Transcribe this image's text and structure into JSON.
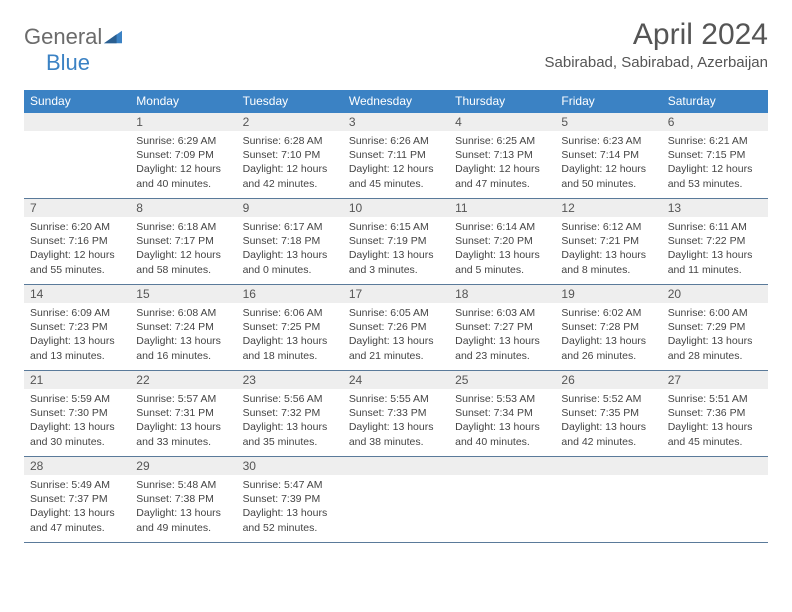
{
  "brand": {
    "part1": "General",
    "part2": "Blue"
  },
  "title": "April 2024",
  "location": "Sabirabad, Sabirabad, Azerbaijan",
  "colors": {
    "header_bg": "#3b82c4",
    "header_text": "#ffffff",
    "daynum_bg": "#eeeeee",
    "daynum_text": "#555555",
    "body_text": "#444444",
    "rule": "#5a7a9a",
    "logo_gray": "#6b6b6b",
    "logo_blue": "#3b82c4"
  },
  "weekdays": [
    "Sunday",
    "Monday",
    "Tuesday",
    "Wednesday",
    "Thursday",
    "Friday",
    "Saturday"
  ],
  "weeks": [
    [
      null,
      {
        "n": "1",
        "sr": "6:29 AM",
        "ss": "7:09 PM",
        "dl": "12 hours and 40 minutes."
      },
      {
        "n": "2",
        "sr": "6:28 AM",
        "ss": "7:10 PM",
        "dl": "12 hours and 42 minutes."
      },
      {
        "n": "3",
        "sr": "6:26 AM",
        "ss": "7:11 PM",
        "dl": "12 hours and 45 minutes."
      },
      {
        "n": "4",
        "sr": "6:25 AM",
        "ss": "7:13 PM",
        "dl": "12 hours and 47 minutes."
      },
      {
        "n": "5",
        "sr": "6:23 AM",
        "ss": "7:14 PM",
        "dl": "12 hours and 50 minutes."
      },
      {
        "n": "6",
        "sr": "6:21 AM",
        "ss": "7:15 PM",
        "dl": "12 hours and 53 minutes."
      }
    ],
    [
      {
        "n": "7",
        "sr": "6:20 AM",
        "ss": "7:16 PM",
        "dl": "12 hours and 55 minutes."
      },
      {
        "n": "8",
        "sr": "6:18 AM",
        "ss": "7:17 PM",
        "dl": "12 hours and 58 minutes."
      },
      {
        "n": "9",
        "sr": "6:17 AM",
        "ss": "7:18 PM",
        "dl": "13 hours and 0 minutes."
      },
      {
        "n": "10",
        "sr": "6:15 AM",
        "ss": "7:19 PM",
        "dl": "13 hours and 3 minutes."
      },
      {
        "n": "11",
        "sr": "6:14 AM",
        "ss": "7:20 PM",
        "dl": "13 hours and 5 minutes."
      },
      {
        "n": "12",
        "sr": "6:12 AM",
        "ss": "7:21 PM",
        "dl": "13 hours and 8 minutes."
      },
      {
        "n": "13",
        "sr": "6:11 AM",
        "ss": "7:22 PM",
        "dl": "13 hours and 11 minutes."
      }
    ],
    [
      {
        "n": "14",
        "sr": "6:09 AM",
        "ss": "7:23 PM",
        "dl": "13 hours and 13 minutes."
      },
      {
        "n": "15",
        "sr": "6:08 AM",
        "ss": "7:24 PM",
        "dl": "13 hours and 16 minutes."
      },
      {
        "n": "16",
        "sr": "6:06 AM",
        "ss": "7:25 PM",
        "dl": "13 hours and 18 minutes."
      },
      {
        "n": "17",
        "sr": "6:05 AM",
        "ss": "7:26 PM",
        "dl": "13 hours and 21 minutes."
      },
      {
        "n": "18",
        "sr": "6:03 AM",
        "ss": "7:27 PM",
        "dl": "13 hours and 23 minutes."
      },
      {
        "n": "19",
        "sr": "6:02 AM",
        "ss": "7:28 PM",
        "dl": "13 hours and 26 minutes."
      },
      {
        "n": "20",
        "sr": "6:00 AM",
        "ss": "7:29 PM",
        "dl": "13 hours and 28 minutes."
      }
    ],
    [
      {
        "n": "21",
        "sr": "5:59 AM",
        "ss": "7:30 PM",
        "dl": "13 hours and 30 minutes."
      },
      {
        "n": "22",
        "sr": "5:57 AM",
        "ss": "7:31 PM",
        "dl": "13 hours and 33 minutes."
      },
      {
        "n": "23",
        "sr": "5:56 AM",
        "ss": "7:32 PM",
        "dl": "13 hours and 35 minutes."
      },
      {
        "n": "24",
        "sr": "5:55 AM",
        "ss": "7:33 PM",
        "dl": "13 hours and 38 minutes."
      },
      {
        "n": "25",
        "sr": "5:53 AM",
        "ss": "7:34 PM",
        "dl": "13 hours and 40 minutes."
      },
      {
        "n": "26",
        "sr": "5:52 AM",
        "ss": "7:35 PM",
        "dl": "13 hours and 42 minutes."
      },
      {
        "n": "27",
        "sr": "5:51 AM",
        "ss": "7:36 PM",
        "dl": "13 hours and 45 minutes."
      }
    ],
    [
      {
        "n": "28",
        "sr": "5:49 AM",
        "ss": "7:37 PM",
        "dl": "13 hours and 47 minutes."
      },
      {
        "n": "29",
        "sr": "5:48 AM",
        "ss": "7:38 PM",
        "dl": "13 hours and 49 minutes."
      },
      {
        "n": "30",
        "sr": "5:47 AM",
        "ss": "7:39 PM",
        "dl": "13 hours and 52 minutes."
      },
      null,
      null,
      null,
      null
    ]
  ],
  "labels": {
    "sunrise": "Sunrise:",
    "sunset": "Sunset:",
    "daylight": "Daylight:"
  }
}
